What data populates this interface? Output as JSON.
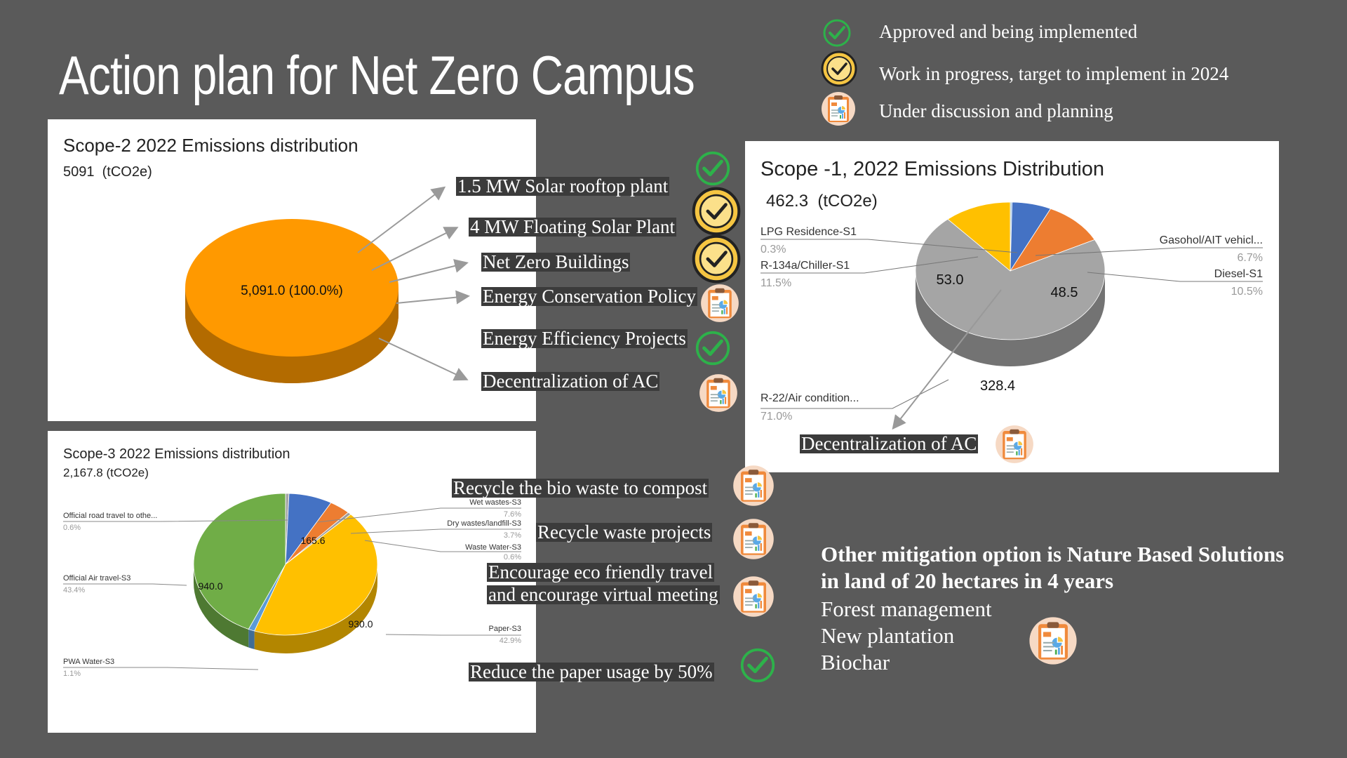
{
  "title": "Action plan for Net Zero Campus",
  "legend": [
    {
      "icon": "check-icon",
      "label": "Approved and being implemented"
    },
    {
      "icon": "gold-check-icon",
      "label": "Work in progress, target to implement in 2024"
    },
    {
      "icon": "clipboard-icon",
      "label": "Under discussion and planning"
    }
  ],
  "scope2": {
    "title": "Scope-2 2022 Emissions distribution",
    "total": "5091  (tCO2e)",
    "slice_label": "5,091.0 (100.0%)",
    "actions": [
      {
        "label": "1.5 MW Solar rooftop plant",
        "status": "check-icon"
      },
      {
        "label": "4 MW Floating Solar Plant",
        "status": "gold-check-icon"
      },
      {
        "label": "Net Zero Buildings",
        "status": "gold-check-icon"
      },
      {
        "label": "Energy Conservation Policy",
        "status": "clipboard-icon"
      },
      {
        "label": "Energy Efficiency Projects",
        "status": "check-icon"
      },
      {
        "label": "Decentralization of AC",
        "status": "clipboard-icon"
      }
    ]
  },
  "scope1": {
    "title": "Scope -1, 2022 Emissions Distribution",
    "total": "462.3  (tCO2e)",
    "value_labels": {
      "r22": "328.4",
      "r134a": "53.0",
      "diesel": "48.5"
    },
    "leader_labels": [
      {
        "name": "LPG Residence-S1",
        "pct": "0.3%"
      },
      {
        "name": "R-134a/Chiller-S1",
        "pct": "11.5%"
      },
      {
        "name": "Gasohol/AIT vehicl...",
        "pct": "6.7%"
      },
      {
        "name": "Diesel-S1",
        "pct": "10.5%"
      },
      {
        "name": "R-22/Air condition...",
        "pct": "71.0%"
      }
    ],
    "action": {
      "label": "Decentralization of AC",
      "status": "clipboard-icon"
    }
  },
  "scope3": {
    "title": "Scope-3 2022 Emissions distribution",
    "total": "2,167.8 (tCO2e)",
    "value_labels": {
      "wet": "165.6",
      "air": "940.0",
      "paper": "930.0"
    },
    "leader_labels": [
      {
        "name": "Official road travel to othe...",
        "pct": "0.6%"
      },
      {
        "name": "Official Air travel-S3",
        "pct": "43.4%"
      },
      {
        "name": "PWA Water-S3",
        "pct": "1.1%"
      },
      {
        "name": "Wet wastes-S3",
        "pct": "7.6%"
      },
      {
        "name": "Dry wastes/landfill-S3",
        "pct": "3.7%"
      },
      {
        "name": "Waste Water-S3",
        "pct": "0.6%"
      },
      {
        "name": "Paper-S3",
        "pct": "42.9%"
      }
    ],
    "actions": [
      {
        "label": "Recycle the bio waste to compost",
        "status": "clipboard-icon"
      },
      {
        "label": "Recycle waste projects",
        "status": "clipboard-icon"
      },
      {
        "label": "Encourage eco friendly travel",
        "status": "clipboard-icon"
      },
      {
        "label": "and encourage virtual meeting",
        "status": "clipboard-icon"
      },
      {
        "label": "Reduce the paper usage by 50%",
        "status": "check-icon"
      }
    ]
  },
  "nature": {
    "heading_line1": "Other mitigation option is Nature Based Solutions",
    "heading_line2": "in land of 20 hectares in 4 years",
    "items": [
      "Forest management",
      "New plantation",
      "Biochar"
    ],
    "status": "clipboard-icon"
  },
  "chart_data": [
    {
      "type": "pie",
      "title": "Scope-2 2022 Emissions distribution",
      "subtitle": "5091  (tCO2e)",
      "labels": [
        ""
      ],
      "values": [
        5091.0
      ],
      "percents": [
        100.0
      ],
      "colors": [
        "#ff9900"
      ]
    },
    {
      "type": "pie",
      "title": "Scope -1, 2022 Emissions Distribution",
      "subtitle": "462.3  (tCO2e)",
      "labels": [
        "LPG Residence-S1",
        "Gasohol/AIT vehicl...",
        "Diesel-S1",
        "R-22/Air condition...",
        "R-134a/Chiller-S1"
      ],
      "values": [
        1.4,
        31.0,
        48.5,
        328.4,
        53.0
      ],
      "percents": [
        0.3,
        6.7,
        10.5,
        71.0,
        11.5
      ],
      "colors": [
        "#9dc3e6",
        "#4472c4",
        "#ed7d31",
        "#a5a5a5",
        "#ffc000"
      ]
    },
    {
      "type": "pie",
      "title": "Scope-3 2022 Emissions distribution",
      "subtitle": "2,167.8 (tCO2e)",
      "labels": [
        "Official road travel to othe...",
        "Wet wastes-S3",
        "Dry wastes/landfill-S3",
        "Waste Water-S3",
        "Paper-S3",
        "PWA Water-S3",
        "Official Air travel-S3"
      ],
      "values": [
        13.0,
        165.6,
        80.2,
        13.0,
        930.0,
        23.8,
        940.0
      ],
      "percents": [
        0.6,
        7.6,
        3.7,
        0.6,
        42.9,
        1.1,
        43.4
      ],
      "colors": [
        "#a5a5a5",
        "#4472c4",
        "#ed7d31",
        "#9e9e9e",
        "#ffc000",
        "#5b9bd5",
        "#70ad47"
      ]
    }
  ]
}
